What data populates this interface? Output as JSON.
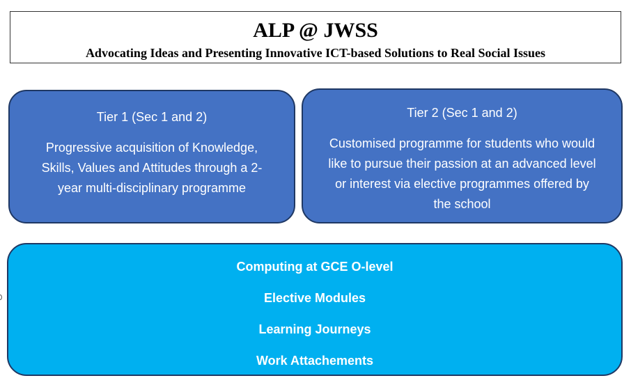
{
  "header": {
    "title": "ALP @ JWSS",
    "subtitle": "Advocating Ideas and Presenting Innovative ICT-based Solutions to Real Social Issues"
  },
  "tiers": [
    {
      "title": "Tier 1 (Sec 1 and 2)",
      "description": "Progressive acquisition of Knowledge, Skills, Values and Attitudes through a 2-year multi-disciplinary programme"
    },
    {
      "title": "Tier 2 (Sec 1 and 2)",
      "description": "Customised programme for students who would like to pursue their passion at an advanced level or interest via elective programmes offered by the school"
    }
  ],
  "bottom": {
    "items": [
      "Computing at GCE O-level",
      "Elective Modules",
      "Learning Journeys",
      "Work Attachements"
    ]
  },
  "colors": {
    "tier_fill": "#4472c4",
    "bottom_fill": "#00b0f0",
    "box_border": "#1f3864"
  }
}
